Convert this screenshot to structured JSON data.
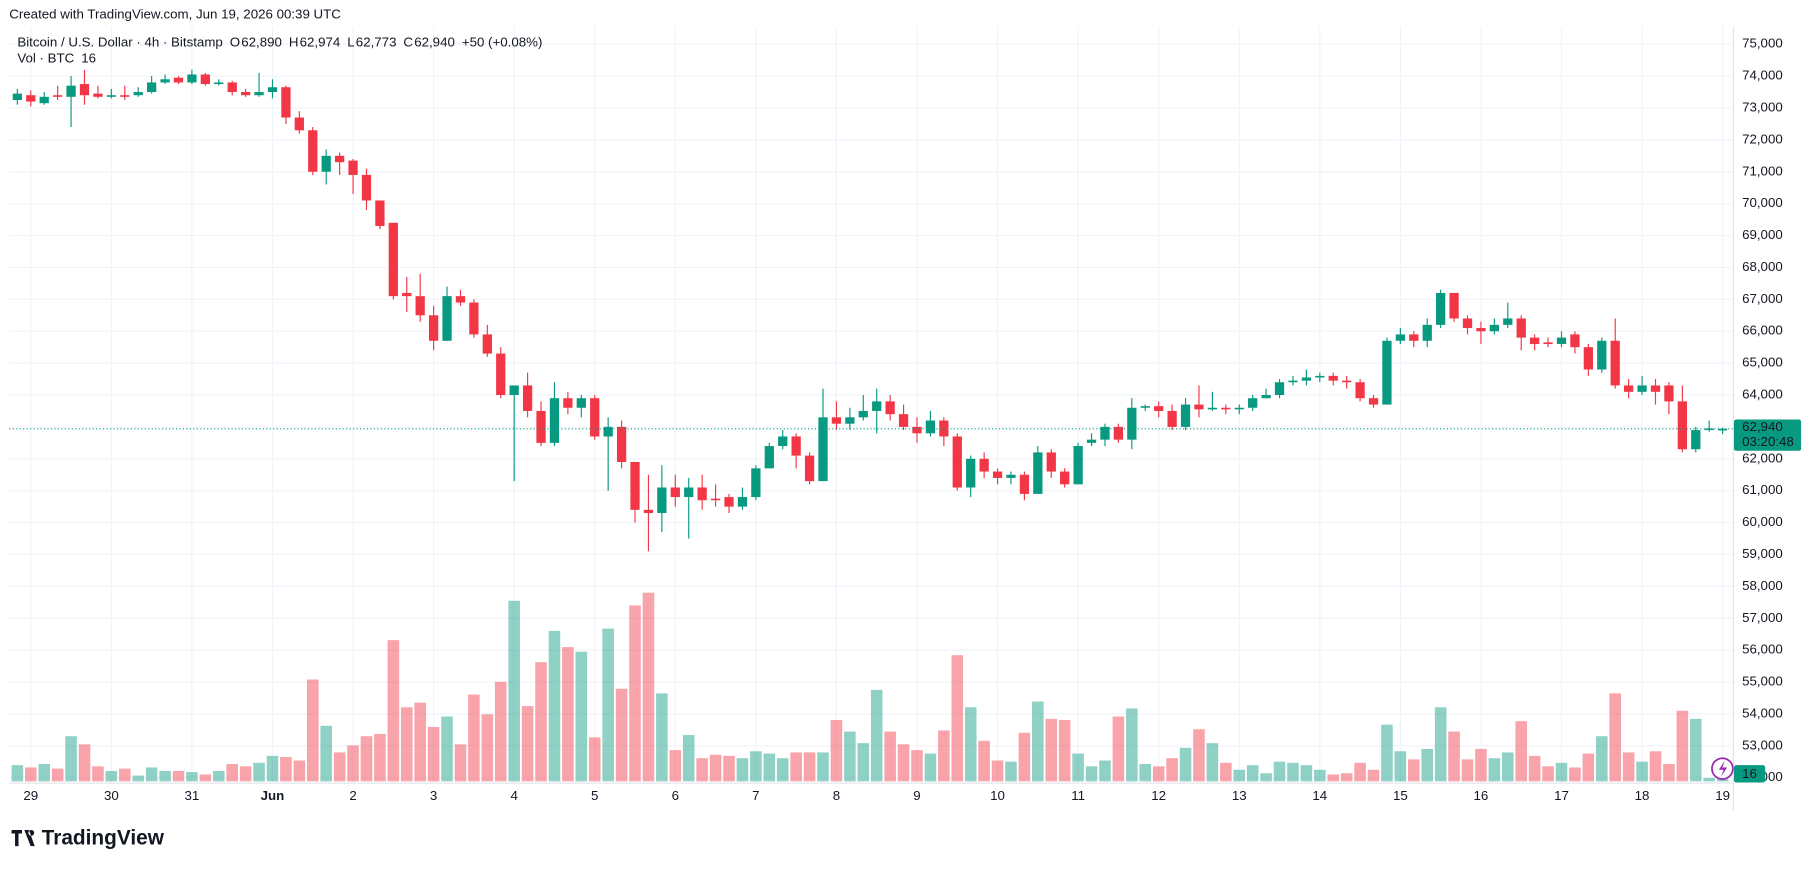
{
  "header": {
    "created": "Created with TradingView.com, Jun 19, 2026 00:39 UTC",
    "logo": "TradingView"
  },
  "legend": {
    "symbol": "Bitcoin / U.S. Dollar · 4h · Bitstamp",
    "ohlc": [
      {
        "key": "O",
        "value": "62,890"
      },
      {
        "key": "H",
        "value": "62,974"
      },
      {
        "key": "L",
        "value": "62,773"
      },
      {
        "key": "C",
        "value": "62,940"
      }
    ],
    "change": "+50 (+0.08%)",
    "volume_label": "Vol · BTC",
    "volume_value": "16"
  },
  "chart_data": {
    "type": "candlestick",
    "up_color": "#089981",
    "down_color": "#f23645",
    "grid": true,
    "last_price_label": "62,940",
    "countdown": "03:20:48",
    "volume_tag": "16",
    "categories": [
      null,
      "29",
      null,
      null,
      null,
      null,
      null,
      "30",
      null,
      null,
      null,
      null,
      null,
      "31",
      null,
      null,
      null,
      null,
      null,
      "Jun",
      null,
      null,
      null,
      null,
      null,
      "2",
      null,
      null,
      null,
      null,
      null,
      "3",
      null,
      null,
      null,
      null,
      null,
      "4",
      null,
      null,
      null,
      null,
      null,
      "5",
      null,
      null,
      null,
      null,
      null,
      "6",
      null,
      null,
      null,
      null,
      null,
      "7",
      null,
      null,
      null,
      null,
      null,
      "8",
      null,
      null,
      null,
      null,
      null,
      "9",
      null,
      null,
      null,
      null,
      null,
      "10",
      null,
      null,
      null,
      null,
      null,
      "11",
      null,
      null,
      null,
      null,
      null,
      "12",
      null,
      null,
      null,
      null,
      null,
      "13",
      null,
      null,
      null,
      null,
      null,
      "14",
      null,
      null,
      null,
      null,
      null,
      "15",
      null,
      null,
      null,
      null,
      null,
      "16",
      null,
      null,
      null,
      null,
      null,
      "17",
      null,
      null,
      null,
      null,
      null,
      "18",
      null,
      null,
      null,
      null,
      null,
      "19"
    ],
    "open": [
      73250,
      73400,
      73150,
      73400,
      73350,
      73750,
      73450,
      73350,
      73400,
      73400,
      73500,
      73800,
      73950,
      73800,
      74050,
      73750,
      73800,
      73500,
      73400,
      73500,
      73650,
      72700,
      72300,
      71000,
      71500,
      71350,
      70900,
      70100,
      69400,
      67200,
      67100,
      66500,
      65700,
      67100,
      66900,
      65900,
      65300,
      64000,
      64300,
      63500,
      62500,
      63900,
      63600,
      63900,
      62700,
      63000,
      61900,
      60400,
      60300,
      61100,
      60800,
      61100,
      60750,
      60800,
      60500,
      60800,
      61700,
      62400,
      62700,
      62100,
      61300,
      63300,
      63100,
      63300,
      63500,
      63800,
      63400,
      63000,
      62800,
      63200,
      62700,
      61100,
      62000,
      61600,
      61400,
      61500,
      60900,
      62200,
      61600,
      61200,
      62500,
      62600,
      63000,
      62600,
      63600,
      63650,
      63500,
      63000,
      63700,
      63550,
      63600,
      63550,
      63600,
      63900,
      64000,
      64400,
      64450,
      64550,
      64600,
      64450,
      64400,
      63900,
      63700,
      65700,
      65900,
      65700,
      66200,
      67200,
      66400,
      66100,
      66000,
      66200,
      66400,
      65800,
      65650,
      65600,
      65900,
      65500,
      64800,
      65700,
      64300,
      64100,
      64300,
      64300,
      63800,
      62300,
      62900,
      62890
    ],
    "high": [
      73600,
      73550,
      73500,
      73700,
      74000,
      74200,
      73700,
      73600,
      73700,
      73650,
      74000,
      74050,
      74000,
      74200,
      74100,
      73900,
      73850,
      73600,
      74100,
      73900,
      73700,
      72900,
      72400,
      71700,
      71600,
      71400,
      71100,
      70100,
      69400,
      67700,
      67800,
      66800,
      67400,
      67300,
      67000,
      66200,
      65500,
      64300,
      64700,
      63800,
      64400,
      64100,
      64000,
      64000,
      63300,
      63200,
      61900,
      61500,
      61800,
      61500,
      61400,
      61500,
      61200,
      60900,
      61100,
      61800,
      62500,
      62900,
      62800,
      62200,
      64200,
      63800,
      63600,
      64000,
      64200,
      64000,
      63700,
      63300,
      63500,
      63300,
      62800,
      62100,
      62200,
      61700,
      61600,
      61600,
      62400,
      62300,
      61700,
      62500,
      62800,
      63100,
      63100,
      63900,
      63700,
      63800,
      63700,
      63900,
      64300,
      64100,
      63700,
      63700,
      64000,
      64200,
      64500,
      64600,
      64800,
      64700,
      64700,
      64600,
      64500,
      64000,
      65800,
      66100,
      66000,
      66400,
      67300,
      67200,
      66500,
      66300,
      66400,
      66900,
      66500,
      65900,
      65800,
      66000,
      66000,
      65600,
      65800,
      66400,
      64500,
      64600,
      64500,
      64400,
      64300,
      63000,
      63200,
      62974
    ],
    "low": [
      73100,
      73050,
      73100,
      73250,
      72400,
      73100,
      73300,
      73300,
      73250,
      73350,
      73450,
      73750,
      73750,
      73750,
      73700,
      73700,
      73400,
      73350,
      73350,
      73300,
      72500,
      72200,
      70900,
      70600,
      70900,
      70300,
      69800,
      69200,
      67000,
      66600,
      66300,
      65400,
      65700,
      66800,
      65800,
      65200,
      63900,
      61300,
      63300,
      62400,
      62400,
      63400,
      63300,
      62600,
      61000,
      61700,
      60000,
      59100,
      59700,
      60500,
      59500,
      60400,
      60500,
      60300,
      60400,
      60700,
      61700,
      62300,
      61700,
      61200,
      61300,
      62900,
      62900,
      63200,
      62800,
      63200,
      62900,
      62500,
      62700,
      62400,
      61000,
      60800,
      61400,
      61200,
      61200,
      60700,
      60900,
      61400,
      61100,
      61200,
      62400,
      62400,
      62500,
      62300,
      63500,
      63300,
      62900,
      62900,
      63300,
      63500,
      63400,
      63400,
      63500,
      63900,
      63900,
      64300,
      64300,
      64400,
      64300,
      64200,
      63800,
      63600,
      63700,
      65600,
      65500,
      65500,
      66100,
      66300,
      65900,
      65600,
      65900,
      66100,
      65400,
      65400,
      65500,
      65500,
      65300,
      64600,
      64700,
      64200,
      63900,
      64000,
      63700,
      63400,
      62200,
      62200,
      62850,
      62773
    ],
    "close": [
      73450,
      73200,
      73350,
      73350,
      73700,
      73400,
      73350,
      73400,
      73350,
      73500,
      73800,
      73900,
      73800,
      74050,
      73750,
      73800,
      73500,
      73400,
      73500,
      73650,
      72700,
      72300,
      71000,
      71500,
      71300,
      70900,
      70100,
      69300,
      67100,
      67100,
      66500,
      65700,
      67100,
      66900,
      65900,
      65300,
      64000,
      64300,
      63500,
      62500,
      63900,
      63600,
      63900,
      62700,
      63000,
      61900,
      60400,
      60300,
      61100,
      60800,
      61100,
      60700,
      60700,
      60500,
      60800,
      61700,
      62400,
      62700,
      62100,
      61300,
      63300,
      63100,
      63300,
      63500,
      63800,
      63400,
      63000,
      62800,
      63200,
      62700,
      61100,
      62000,
      61600,
      61400,
      61500,
      60900,
      62200,
      61600,
      61200,
      62400,
      62600,
      63000,
      62600,
      63600,
      63650,
      63500,
      63000,
      63700,
      63550,
      63600,
      63550,
      63600,
      63900,
      64000,
      64400,
      64450,
      64550,
      64600,
      64450,
      64400,
      63900,
      63700,
      65700,
      65900,
      65700,
      66200,
      67200,
      66400,
      66100,
      66000,
      66200,
      66400,
      65800,
      65600,
      65600,
      65800,
      65500,
      64800,
      65700,
      64300,
      64100,
      64300,
      64100,
      63800,
      62300,
      62900,
      62950,
      62940
    ],
    "volume": [
      112,
      96,
      120,
      88,
      312,
      256,
      104,
      72,
      88,
      40,
      96,
      72,
      72,
      64,
      48,
      72,
      120,
      104,
      128,
      176,
      168,
      144,
      704,
      384,
      200,
      248,
      312,
      328,
      976,
      512,
      544,
      376,
      448,
      256,
      600,
      464,
      688,
      1248,
      520,
      824,
      1040,
      928,
      896,
      304,
      1056,
      640,
      1216,
      1304,
      608,
      216,
      320,
      160,
      184,
      176,
      160,
      208,
      192,
      160,
      200,
      200,
      200,
      424,
      344,
      264,
      632,
      344,
      256,
      216,
      192,
      352,
      872,
      512,
      280,
      144,
      136,
      336,
      552,
      432,
      424,
      192,
      104,
      144,
      448,
      504,
      120,
      104,
      160,
      232,
      360,
      264,
      128,
      80,
      112,
      56,
      136,
      128,
      112,
      80,
      48,
      56,
      128,
      80,
      392,
      208,
      152,
      224,
      512,
      344,
      152,
      224,
      160,
      200,
      416,
      176,
      104,
      128,
      96,
      192,
      312,
      608,
      200,
      136,
      208,
      120,
      488,
      432,
      24,
      16
    ],
    "ylim": [
      51850,
      75550
    ],
    "yticks": [
      {
        "value": 52000,
        "label": "52,000"
      },
      {
        "value": 53000,
        "label": "53,000"
      },
      {
        "value": 54000,
        "label": "54,000"
      },
      {
        "value": 55000,
        "label": "55,000"
      },
      {
        "value": 56000,
        "label": "56,000"
      },
      {
        "value": 57000,
        "label": "57,000"
      },
      {
        "value": 58000,
        "label": "58,000"
      },
      {
        "value": 59000,
        "label": "59,000"
      },
      {
        "value": 60000,
        "label": "60,000"
      },
      {
        "value": 61000,
        "label": "61,000"
      },
      {
        "value": 62000,
        "label": "62,000"
      },
      {
        "value": 63000,
        "label": "63,000"
      },
      {
        "value": 64000,
        "label": "64,000"
      },
      {
        "value": 65000,
        "label": "65,000"
      },
      {
        "value": 66000,
        "label": "66,000"
      },
      {
        "value": 67000,
        "label": "67,000"
      },
      {
        "value": 68000,
        "label": "68,000"
      },
      {
        "value": 69000,
        "label": "69,000"
      },
      {
        "value": 70000,
        "label": "70,000"
      },
      {
        "value": 71000,
        "label": "71,000"
      },
      {
        "value": 72000,
        "label": "72,000"
      },
      {
        "value": 73000,
        "label": "73,000"
      },
      {
        "value": 74000,
        "label": "74,000"
      },
      {
        "value": 75000,
        "label": "75,000"
      }
    ]
  }
}
